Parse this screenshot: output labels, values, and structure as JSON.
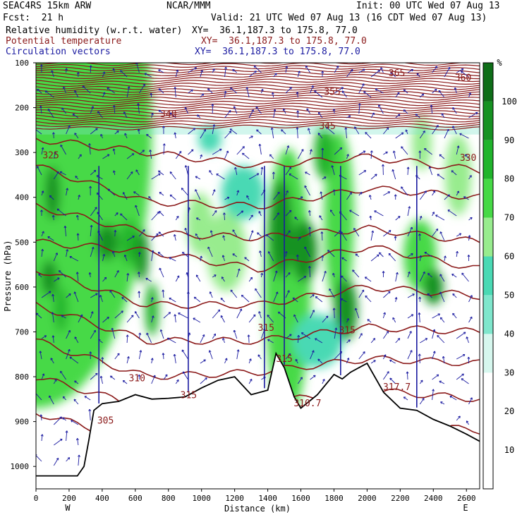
{
  "header": {
    "model": "SEAC4RS 15km ARW",
    "center": "NCAR/MMM",
    "init": "Init: 00 UTC Wed 07 Aug 13",
    "fcst": "Fcst:  21 h",
    "valid": "Valid: 21 UTC Wed 07 Aug 13 (16 CDT Wed 07 Aug 13)",
    "fields": [
      {
        "name": "Relative humidity (w.r.t. water)",
        "xy": "XY=  36.1,187.3 to 175.8, 77.0",
        "color": "#000000"
      },
      {
        "name": "Potential temperature",
        "xy": "XY=  36.1,187.3 to 175.8, 77.0",
        "color": "#8b1a1a"
      },
      {
        "name": "Circulation vectors",
        "xy": "XY=  36.1,187.3 to 175.8, 77.0",
        "color": "#1a1aa0"
      }
    ]
  },
  "chart_data": {
    "type": "cross-section",
    "xlabel": "Distance (km)",
    "ylabel": "Pressure (hPa)",
    "x_ticks": [
      0,
      200,
      400,
      600,
      800,
      1000,
      1200,
      1400,
      1600,
      1800,
      2000,
      2200,
      2400,
      2600
    ],
    "y_ticks": [
      100,
      200,
      300,
      400,
      500,
      600,
      700,
      800,
      900,
      1000
    ],
    "xlim": [
      0,
      2680
    ],
    "ylim": [
      1050,
      100
    ],
    "x_end_labels": {
      "left": "W",
      "right": "E"
    },
    "colorbar": {
      "unit": "%",
      "ticks": [
        10,
        20,
        30,
        40,
        50,
        60,
        70,
        80,
        90,
        100
      ],
      "colors": [
        "#ffffff",
        "#ffffff",
        "#ffffff",
        "#d6f7ee",
        "#7fe6cc",
        "#4ad9b4",
        "#98ec8e",
        "#46d946",
        "#20b42c",
        "#169222",
        "#0e6e18"
      ]
    },
    "theta_labels": [
      {
        "text": "365",
        "x": 2180,
        "p": 122
      },
      {
        "text": "360",
        "x": 2580,
        "p": 132
      },
      {
        "text": "355",
        "x": 1790,
        "p": 164
      },
      {
        "text": "345",
        "x": 1760,
        "p": 240
      },
      {
        "text": "340",
        "x": 800,
        "p": 213
      },
      {
        "text": "325",
        "x": 90,
        "p": 305
      },
      {
        "text": "330",
        "x": 2610,
        "p": 311
      },
      {
        "text": "315",
        "x": 1390,
        "p": 690
      },
      {
        "text": "315",
        "x": 1880,
        "p": 695
      },
      {
        "text": "315",
        "x": 1500,
        "p": 759
      },
      {
        "text": "310",
        "x": 610,
        "p": 802
      },
      {
        "text": "305",
        "x": 420,
        "p": 897
      },
      {
        "text": "315",
        "x": 922,
        "p": 840
      },
      {
        "text": "310.7",
        "x": 1640,
        "p": 858
      },
      {
        "text": "317.7",
        "x": 2180,
        "p": 822
      }
    ],
    "terrain_p": [
      [
        0,
        1021
      ],
      [
        250,
        1021
      ],
      [
        290,
        1000
      ],
      [
        320,
        940
      ],
      [
        350,
        875
      ],
      [
        400,
        860
      ],
      [
        500,
        855
      ],
      [
        600,
        840
      ],
      [
        700,
        850
      ],
      [
        800,
        848
      ],
      [
        900,
        845
      ],
      [
        950,
        835
      ],
      [
        1000,
        825
      ],
      [
        1100,
        808
      ],
      [
        1200,
        800
      ],
      [
        1300,
        840
      ],
      [
        1400,
        830
      ],
      [
        1450,
        748
      ],
      [
        1500,
        780
      ],
      [
        1560,
        845
      ],
      [
        1600,
        870
      ],
      [
        1700,
        840
      ],
      [
        1800,
        795
      ],
      [
        1850,
        805
      ],
      [
        1900,
        790
      ],
      [
        2000,
        770
      ],
      [
        2100,
        835
      ],
      [
        2200,
        870
      ],
      [
        2300,
        875
      ],
      [
        2400,
        895
      ],
      [
        2500,
        910
      ],
      [
        2600,
        928
      ],
      [
        2680,
        944
      ]
    ]
  }
}
